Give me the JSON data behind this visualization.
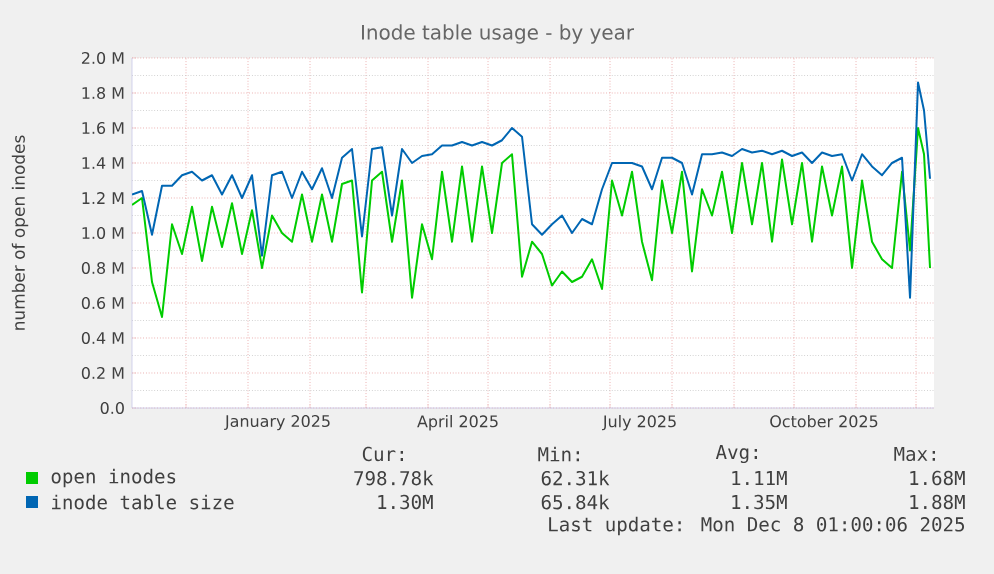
{
  "chart_data": {
    "type": "line",
    "title": "Inode table usage - by year",
    "ylabel": "number of open inodes",
    "x": [
      "2024-11-04",
      "2024-11-09",
      "2024-11-14",
      "2024-11-19",
      "2024-11-24",
      "2024-11-29",
      "2024-12-04",
      "2024-12-09",
      "2024-12-14",
      "2024-12-19",
      "2024-12-24",
      "2024-12-29",
      "2025-01-03",
      "2025-01-08",
      "2025-01-13",
      "2025-01-18",
      "2025-01-23",
      "2025-01-28",
      "2025-02-02",
      "2025-02-07",
      "2025-02-12",
      "2025-02-17",
      "2025-02-22",
      "2025-02-27",
      "2025-03-04",
      "2025-03-09",
      "2025-03-14",
      "2025-03-19",
      "2025-03-24",
      "2025-03-29",
      "2025-04-03",
      "2025-04-08",
      "2025-04-13",
      "2025-04-18",
      "2025-04-23",
      "2025-04-28",
      "2025-05-03",
      "2025-05-08",
      "2025-05-13",
      "2025-05-18",
      "2025-05-23",
      "2025-05-28",
      "2025-06-02",
      "2025-06-07",
      "2025-06-12",
      "2025-06-17",
      "2025-06-22",
      "2025-06-27",
      "2025-07-02",
      "2025-07-07",
      "2025-07-12",
      "2025-07-17",
      "2025-07-22",
      "2025-07-27",
      "2025-08-01",
      "2025-08-06",
      "2025-08-11",
      "2025-08-16",
      "2025-08-21",
      "2025-08-26",
      "2025-08-31",
      "2025-09-05",
      "2025-09-10",
      "2025-09-15",
      "2025-09-20",
      "2025-09-25",
      "2025-09-30",
      "2025-10-05",
      "2025-10-10",
      "2025-10-15",
      "2025-10-20",
      "2025-10-25",
      "2025-10-30",
      "2025-11-04",
      "2025-11-09",
      "2025-11-14",
      "2025-11-19",
      "2025-11-24",
      "2025-11-28",
      "2025-12-02",
      "2025-12-05",
      "2025-12-08"
    ],
    "series": [
      {
        "name": "open inodes",
        "color": "#00cc00",
        "values": [
          1160000,
          1200000,
          720000,
          520000,
          1050000,
          880000,
          1150000,
          840000,
          1150000,
          920000,
          1170000,
          880000,
          1130000,
          800000,
          1100000,
          1000000,
          950000,
          1220000,
          950000,
          1220000,
          950000,
          1280000,
          1300000,
          660000,
          1300000,
          1350000,
          950000,
          1300000,
          630000,
          1050000,
          850000,
          1350000,
          950000,
          1380000,
          950000,
          1380000,
          1000000,
          1400000,
          1450000,
          750000,
          950000,
          880000,
          700000,
          780000,
          720000,
          750000,
          850000,
          680000,
          1300000,
          1100000,
          1350000,
          950000,
          730000,
          1300000,
          1000000,
          1350000,
          780000,
          1250000,
          1100000,
          1350000,
          1000000,
          1400000,
          1050000,
          1400000,
          950000,
          1420000,
          1050000,
          1400000,
          950000,
          1380000,
          1100000,
          1380000,
          800000,
          1300000,
          950000,
          850000,
          800000,
          1350000,
          900000,
          1600000,
          1450000,
          800000
        ]
      },
      {
        "name": "inode table size",
        "color": "#0066b3",
        "values": [
          1220000,
          1240000,
          990000,
          1270000,
          1270000,
          1330000,
          1350000,
          1300000,
          1330000,
          1220000,
          1330000,
          1200000,
          1330000,
          870000,
          1330000,
          1350000,
          1200000,
          1350000,
          1250000,
          1370000,
          1200000,
          1430000,
          1480000,
          980000,
          1480000,
          1490000,
          1100000,
          1480000,
          1400000,
          1440000,
          1450000,
          1500000,
          1500000,
          1520000,
          1500000,
          1520000,
          1500000,
          1530000,
          1600000,
          1550000,
          1050000,
          990000,
          1050000,
          1100000,
          1000000,
          1080000,
          1050000,
          1250000,
          1400000,
          1400000,
          1400000,
          1380000,
          1250000,
          1430000,
          1430000,
          1400000,
          1220000,
          1450000,
          1450000,
          1460000,
          1440000,
          1480000,
          1460000,
          1470000,
          1450000,
          1470000,
          1440000,
          1460000,
          1400000,
          1460000,
          1440000,
          1450000,
          1300000,
          1450000,
          1380000,
          1330000,
          1400000,
          1430000,
          630000,
          1860000,
          1700000,
          1310000
        ]
      }
    ],
    "xlim": [
      "2024-11-04",
      "2025-12-10"
    ],
    "xticks": [
      {
        "value": "2024-12-01",
        "label": null
      },
      {
        "value": "2025-01-01",
        "label": null
      },
      {
        "value": "2025-02-01",
        "label": null
      },
      {
        "value": "2025-03-01",
        "label": null
      },
      {
        "value": "2025-04-01",
        "label": null
      },
      {
        "value": "2025-05-01",
        "label": null
      },
      {
        "value": "2025-06-01",
        "label": null
      },
      {
        "value": "2025-07-01",
        "label": null
      },
      {
        "value": "2025-08-01",
        "label": null
      },
      {
        "value": "2025-09-01",
        "label": null
      },
      {
        "value": "2025-10-01",
        "label": null
      },
      {
        "value": "2025-11-01",
        "label": null
      },
      {
        "value": "2025-12-01",
        "label": null
      },
      {
        "value": "2025-01-16",
        "label": "January 2025"
      },
      {
        "value": "2025-04-16",
        "label": "April 2025"
      },
      {
        "value": "2025-07-16",
        "label": "July 2025"
      },
      {
        "value": "2025-10-16",
        "label": "October 2025"
      }
    ],
    "ylim": [
      0,
      2000000
    ],
    "yticks": [
      {
        "value": 0,
        "label": "0.0"
      },
      {
        "value": 200000,
        "label": "0.2 M"
      },
      {
        "value": 400000,
        "label": "0.4 M"
      },
      {
        "value": 600000,
        "label": "0.6 M"
      },
      {
        "value": 800000,
        "label": "0.8 M"
      },
      {
        "value": 1000000,
        "label": "1.0 M"
      },
      {
        "value": 1200000,
        "label": "1.2 M"
      },
      {
        "value": 1400000,
        "label": "1.4 M"
      },
      {
        "value": 1600000,
        "label": "1.6 M"
      },
      {
        "value": 1800000,
        "label": "1.8 M"
      },
      {
        "value": 2000000,
        "label": "2.0 M"
      }
    ],
    "grid": true,
    "legend": "bottom",
    "marker": "none",
    "line_style": "solid",
    "annotations": [
      "Cur:",
      "Min:",
      "Avg:",
      "Max:",
      "798.78k",
      "62.31k",
      "1.11M",
      "1.68M",
      "1.30M",
      "65.84k",
      "1.35M",
      "1.88M",
      "Last update: Mon Dec 8 01:00:06 2025"
    ]
  }
}
